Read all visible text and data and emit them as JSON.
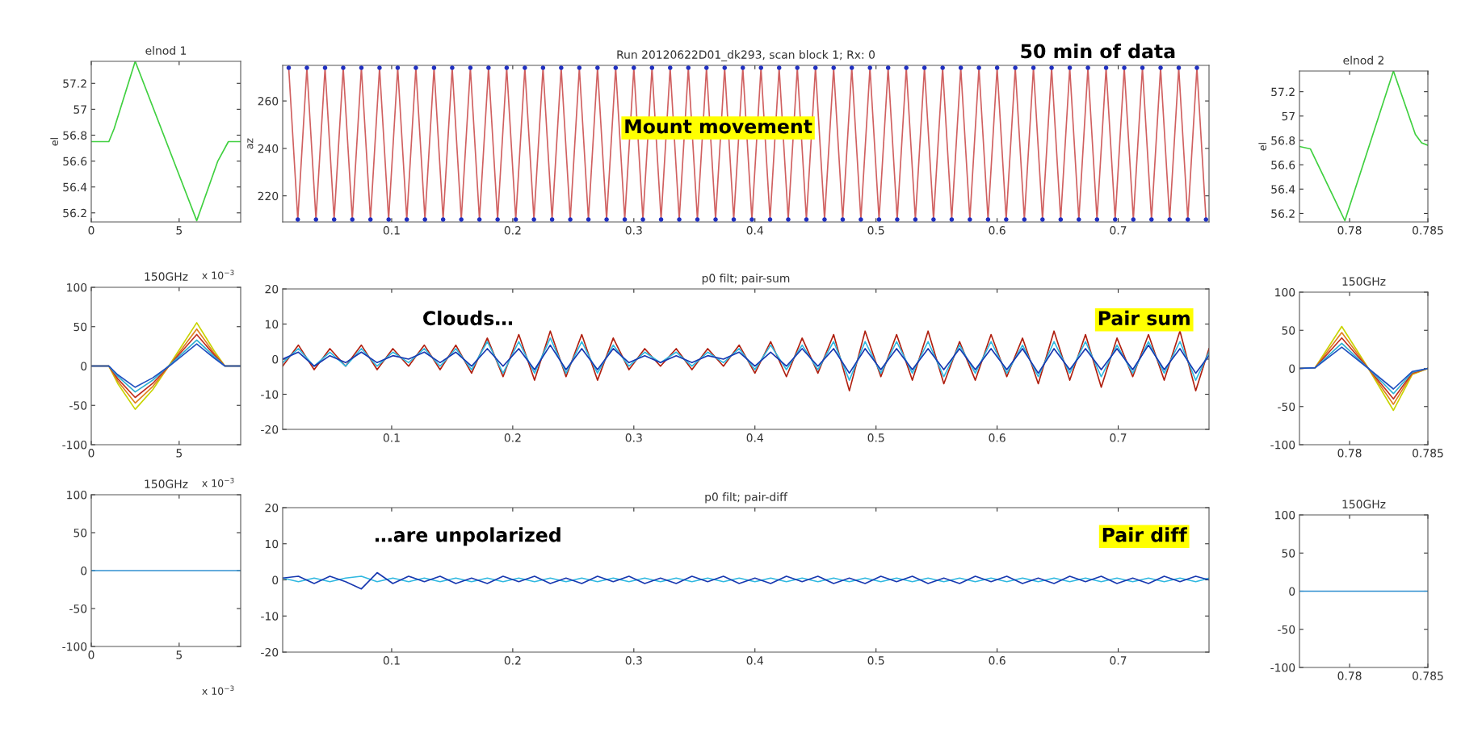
{
  "chart_data": [
    {
      "type": "line",
      "title": "elnod 1",
      "ylabel": "el",
      "x": [
        0,
        1,
        1.3,
        2.5,
        6.0,
        7.2,
        7.8,
        8.5
      ],
      "xlim": [
        0,
        8.5
      ],
      "xticks": [
        0,
        5
      ],
      "ylim": [
        56.13,
        57.37
      ],
      "yticks": [
        56.2,
        56.4,
        56.6,
        56.8,
        57,
        57.2
      ],
      "grid": false,
      "series": [
        {
          "color": "#40d040",
          "values": [
            56.75,
            56.75,
            56.85,
            57.37,
            56.14,
            56.6,
            56.75,
            56.75
          ]
        }
      ]
    },
    {
      "type": "line",
      "title": "Run 20120622D01_dk293, scan block 1; Rx: 0",
      "ylabel": "az",
      "xlim": [
        0.01,
        0.775
      ],
      "xticks": [
        0.1,
        0.2,
        0.3,
        0.4,
        0.5,
        0.6,
        0.7
      ],
      "ylim": [
        209,
        275
      ],
      "yticks": [
        220,
        240,
        260
      ],
      "grid": false,
      "x": [
        0.015,
        0.0225,
        0.03,
        0.0375,
        0.045,
        0.0525,
        0.06,
        0.0675,
        0.075,
        0.0825,
        0.09,
        0.0975,
        0.105,
        0.1125,
        0.12,
        0.1275,
        0.135,
        0.1425,
        0.15,
        0.1575,
        0.165,
        0.1725,
        0.18,
        0.1875,
        0.195,
        0.2025,
        0.21,
        0.2175,
        0.225,
        0.2325,
        0.24,
        0.2475,
        0.255,
        0.2625,
        0.27,
        0.2775,
        0.285,
        0.2925,
        0.3,
        0.3075,
        0.315,
        0.3225,
        0.33,
        0.3375,
        0.345,
        0.3525,
        0.36,
        0.3675,
        0.375,
        0.3825,
        0.39,
        0.3975,
        0.405,
        0.4125,
        0.42,
        0.4275,
        0.435,
        0.4425,
        0.45,
        0.4575,
        0.465,
        0.4725,
        0.48,
        0.4875,
        0.495,
        0.5025,
        0.51,
        0.5175,
        0.525,
        0.5325,
        0.54,
        0.5475,
        0.555,
        0.5625,
        0.57,
        0.5775,
        0.585,
        0.5925,
        0.6,
        0.6075,
        0.615,
        0.6225,
        0.63,
        0.6375,
        0.645,
        0.6525,
        0.66,
        0.6675,
        0.675,
        0.6825,
        0.69,
        0.6975,
        0.705,
        0.7125,
        0.72,
        0.7275,
        0.735,
        0.7425,
        0.75,
        0.7575,
        0.765,
        0.7725
      ],
      "series": [
        {
          "type": "line",
          "color": "#d06060",
          "values": [
            274,
            210,
            274,
            210,
            274,
            210,
            274,
            210,
            274,
            210,
            274,
            210,
            274,
            210,
            274,
            210,
            274,
            210,
            274,
            210,
            274,
            210,
            274,
            210,
            274,
            210,
            274,
            210,
            274,
            210,
            274,
            210,
            274,
            210,
            274,
            210,
            274,
            210,
            274,
            210,
            274,
            210,
            274,
            210,
            274,
            210,
            274,
            210,
            274,
            210,
            274,
            210,
            274,
            210,
            274,
            210,
            274,
            210,
            274,
            210,
            274,
            210,
            274,
            210,
            274,
            210,
            274,
            210,
            274,
            210,
            274,
            210,
            274,
            210,
            274,
            210,
            274,
            210,
            274,
            210,
            274,
            210,
            274,
            210,
            274,
            210,
            274,
            210,
            274,
            210,
            274,
            210,
            274,
            210,
            274,
            210,
            274,
            210,
            274,
            210,
            274,
            210
          ]
        },
        {
          "type": "scatter",
          "marker": "circle",
          "color": "#2030c0",
          "values": [
            274,
            210,
            274,
            210,
            274,
            210,
            274,
            210,
            274,
            210,
            274,
            210,
            274,
            210,
            274,
            210,
            274,
            210,
            274,
            210,
            274,
            210,
            274,
            210,
            274,
            210,
            274,
            210,
            274,
            210,
            274,
            210,
            274,
            210,
            274,
            210,
            274,
            210,
            274,
            210,
            274,
            210,
            274,
            210,
            274,
            210,
            274,
            210,
            274,
            210,
            274,
            210,
            274,
            210,
            274,
            210,
            274,
            210,
            274,
            210,
            274,
            210,
            274,
            210,
            274,
            210,
            274,
            210,
            274,
            210,
            274,
            210,
            274,
            210,
            274,
            210,
            274,
            210,
            274,
            210,
            274,
            210,
            274,
            210,
            274,
            210,
            274,
            210,
            274,
            210,
            274,
            210,
            274,
            210,
            274,
            210,
            274,
            210,
            274,
            210,
            274,
            210
          ]
        }
      ],
      "annotations": [
        "50 min of data",
        "Mount movement"
      ]
    },
    {
      "type": "line",
      "title": "elnod 2",
      "ylabel": "el",
      "x": [
        0.7768,
        0.7775,
        0.7797,
        0.7828,
        0.7842,
        0.7846,
        0.785
      ],
      "xlim": [
        0.7768,
        0.785
      ],
      "xticks": [
        0.78,
        0.785
      ],
      "ylim": [
        56.13,
        57.37
      ],
      "yticks": [
        56.2,
        56.4,
        56.6,
        56.8,
        57,
        57.2
      ],
      "grid": false,
      "series": [
        {
          "color": "#40d040",
          "values": [
            56.75,
            56.73,
            56.14,
            57.37,
            56.85,
            56.78,
            56.76
          ]
        }
      ]
    },
    {
      "type": "line",
      "title": "150GHz",
      "x": [
        0,
        1,
        1.5,
        2.5,
        3.5,
        4.5,
        6,
        7,
        7.6,
        8.5
      ],
      "xlim": [
        0,
        8.5
      ],
      "xticks": [
        0,
        5
      ],
      "ylim": [
        -100,
        100
      ],
      "yticks": [
        -100,
        -50,
        0,
        50,
        100
      ],
      "grid": false,
      "series": [
        {
          "color": "#c8d400",
          "values": [
            0,
            0,
            -22,
            -55,
            -30,
            3,
            55,
            19,
            0,
            0
          ]
        },
        {
          "color": "#e08020",
          "values": [
            0,
            0,
            -19,
            -47,
            -26,
            2,
            47,
            16,
            0,
            0
          ]
        },
        {
          "color": "#c03020",
          "values": [
            0,
            0,
            -16,
            -40,
            -22,
            2,
            40,
            14,
            0,
            0
          ]
        },
        {
          "color": "#30b0d0",
          "values": [
            0,
            0,
            -13,
            -33,
            -18,
            2,
            33,
            12,
            0,
            0
          ]
        },
        {
          "color": "#2050c0",
          "values": [
            0,
            0,
            -11,
            -27,
            -15,
            1,
            28,
            10,
            0,
            0
          ]
        }
      ],
      "annotations": [
        "x 10$^{−3}$"
      ]
    },
    {
      "type": "line",
      "title": "p0 filt; pair-sum",
      "xlim": [
        0.01,
        0.775
      ],
      "xticks": [
        0.1,
        0.2,
        0.3,
        0.4,
        0.5,
        0.6,
        0.7
      ],
      "ylim": [
        -20,
        20
      ],
      "yticks": [
        -20,
        -10,
        0,
        10,
        20
      ],
      "grid": false,
      "x": [
        0.01,
        0.023,
        0.036,
        0.049,
        0.062,
        0.075,
        0.088,
        0.101,
        0.114,
        0.127,
        0.14,
        0.153,
        0.166,
        0.179,
        0.192,
        0.205,
        0.218,
        0.231,
        0.244,
        0.257,
        0.27,
        0.283,
        0.296,
        0.309,
        0.322,
        0.335,
        0.348,
        0.361,
        0.374,
        0.387,
        0.4,
        0.413,
        0.426,
        0.439,
        0.452,
        0.465,
        0.478,
        0.491,
        0.504,
        0.517,
        0.53,
        0.543,
        0.556,
        0.569,
        0.582,
        0.595,
        0.608,
        0.621,
        0.634,
        0.647,
        0.66,
        0.673,
        0.686,
        0.699,
        0.712,
        0.725,
        0.738,
        0.751,
        0.764,
        0.775
      ],
      "series": [
        {
          "color": "#b02010",
          "values": [
            -2,
            4,
            -3,
            3,
            -2,
            4,
            -3,
            3,
            -2,
            4,
            -3,
            4,
            -4,
            6,
            -5,
            7,
            -6,
            8,
            -5,
            7,
            -6,
            6,
            -3,
            3,
            -2,
            3,
            -3,
            3,
            -2,
            4,
            -4,
            5,
            -5,
            6,
            -4,
            7,
            -9,
            8,
            -5,
            7,
            -6,
            8,
            -7,
            5,
            -6,
            7,
            -5,
            6,
            -7,
            8,
            -6,
            7,
            -8,
            6,
            -5,
            7,
            -6,
            8,
            -9,
            3
          ]
        },
        {
          "color": "#30b8e0",
          "values": [
            -1,
            3,
            -2,
            2,
            -2,
            3,
            -2,
            2,
            -1,
            3,
            -2,
            3,
            -3,
            5,
            -4,
            5,
            -4,
            6,
            -4,
            5,
            -4,
            4,
            -2,
            2,
            -1,
            2,
            -2,
            2,
            -1,
            3,
            -3,
            4,
            -3,
            4,
            -3,
            5,
            -6,
            5,
            -4,
            5,
            -4,
            5,
            -5,
            4,
            -4,
            5,
            -4,
            4,
            -5,
            5,
            -4,
            5,
            -5,
            4,
            -4,
            5,
            -4,
            5,
            -6,
            2
          ]
        },
        {
          "color": "#1838b0",
          "values": [
            0,
            2,
            -2,
            1,
            -1,
            2,
            -1,
            1,
            0,
            2,
            -1,
            2,
            -2,
            3,
            -2,
            3,
            -3,
            4,
            -3,
            3,
            -3,
            3,
            -1,
            1,
            -1,
            1,
            -1,
            1,
            0,
            2,
            -2,
            2,
            -2,
            3,
            -2,
            3,
            -4,
            3,
            -3,
            3,
            -3,
            3,
            -3,
            3,
            -3,
            3,
            -3,
            3,
            -4,
            3,
            -3,
            3,
            -3,
            3,
            -3,
            4,
            -3,
            3,
            -4,
            1
          ]
        }
      ],
      "annotations": [
        "Clouds…",
        "Pair sum"
      ]
    },
    {
      "type": "line",
      "title": "150GHz",
      "x": [
        0.7768,
        0.7778,
        0.7795,
        0.7812,
        0.7828,
        0.784,
        0.785
      ],
      "xlim": [
        0.7768,
        0.785
      ],
      "xticks": [
        0.78,
        0.785
      ],
      "ylim": [
        -100,
        100
      ],
      "yticks": [
        -100,
        -50,
        0,
        50,
        100
      ],
      "grid": false,
      "series": [
        {
          "color": "#c8d400",
          "values": [
            0,
            1,
            55,
            0,
            -55,
            -8,
            0
          ]
        },
        {
          "color": "#e08020",
          "values": [
            0,
            1,
            47,
            0,
            -47,
            -7,
            0
          ]
        },
        {
          "color": "#c03020",
          "values": [
            0,
            1,
            40,
            0,
            -40,
            -6,
            0
          ]
        },
        {
          "color": "#30b0d0",
          "values": [
            0,
            1,
            33,
            0,
            -33,
            -5,
            0
          ]
        },
        {
          "color": "#2050c0",
          "values": [
            0,
            1,
            28,
            0,
            -27,
            -4,
            0
          ]
        }
      ]
    },
    {
      "type": "line",
      "title": "150GHz",
      "x": [
        0,
        2,
        4,
        6,
        8.5
      ],
      "xlim": [
        0,
        8.5
      ],
      "xticks": [
        0,
        5
      ],
      "ylim": [
        -100,
        100
      ],
      "yticks": [
        -100,
        -50,
        0,
        50,
        100
      ],
      "grid": false,
      "series": [
        {
          "color": "#3090d0",
          "values": [
            0,
            0,
            0,
            0,
            0
          ]
        }
      ],
      "annotations": [
        "x 10$^{−3}$",
        "x 10$^{−3}$"
      ]
    },
    {
      "type": "line",
      "title": "p0 filt; pair-diff",
      "xlim": [
        0.01,
        0.775
      ],
      "xticks": [
        0.1,
        0.2,
        0.3,
        0.4,
        0.5,
        0.6,
        0.7
      ],
      "ylim": [
        -20,
        20
      ],
      "yticks": [
        -20,
        -10,
        0,
        10,
        20
      ],
      "grid": false,
      "x": [
        0.01,
        0.023,
        0.036,
        0.049,
        0.062,
        0.075,
        0.088,
        0.101,
        0.114,
        0.127,
        0.14,
        0.153,
        0.166,
        0.179,
        0.192,
        0.205,
        0.218,
        0.231,
        0.244,
        0.257,
        0.27,
        0.283,
        0.296,
        0.309,
        0.322,
        0.335,
        0.348,
        0.361,
        0.374,
        0.387,
        0.4,
        0.413,
        0.426,
        0.439,
        0.452,
        0.465,
        0.478,
        0.491,
        0.504,
        0.517,
        0.53,
        0.543,
        0.556,
        0.569,
        0.582,
        0.595,
        0.608,
        0.621,
        0.634,
        0.647,
        0.66,
        0.673,
        0.686,
        0.699,
        0.712,
        0.725,
        0.738,
        0.751,
        0.764,
        0.775
      ],
      "series": [
        {
          "color": "#30b8e0",
          "values": [
            0.5,
            -0.5,
            0.5,
            -0.5,
            0.5,
            1,
            -0.5,
            0.5,
            -0.5,
            0.5,
            -0.5,
            0.5,
            -0.5,
            0.5,
            -0.5,
            0.5,
            -0.5,
            0.5,
            -0.5,
            0.5,
            -0.5,
            0.5,
            -0.5,
            0.5,
            -0.5,
            0.5,
            -0.5,
            0.5,
            -0.5,
            0.5,
            -0.5,
            0.5,
            -0.5,
            0.5,
            -0.5,
            0.5,
            -0.5,
            0.5,
            -0.5,
            0.5,
            -0.5,
            0.5,
            -0.5,
            0.5,
            -0.5,
            0.5,
            -0.5,
            0.5,
            -0.5,
            0.5,
            -0.5,
            0.5,
            -0.5,
            0.5,
            -0.5,
            0.5,
            -0.5,
            0.5,
            -0.5,
            0.5
          ]
        },
        {
          "color": "#1838b0",
          "values": [
            0.5,
            1,
            -1,
            1,
            -0.5,
            -2.5,
            2,
            -1,
            1,
            -0.5,
            1,
            -1,
            0.5,
            -1,
            1,
            -0.5,
            1,
            -1,
            0.5,
            -1,
            1,
            -0.5,
            1,
            -1,
            0.5,
            -1,
            1,
            -0.5,
            1,
            -1,
            0.5,
            -1,
            1,
            -0.5,
            1,
            -1,
            0.5,
            -1,
            1,
            -0.5,
            1,
            -1,
            0.5,
            -1,
            1,
            -0.5,
            1,
            -1,
            0.5,
            -1,
            1,
            -0.5,
            1,
            -1,
            0.5,
            -1,
            1,
            -0.5,
            1,
            0
          ]
        }
      ],
      "annotations": [
        "…are unpolarized",
        "Pair diff"
      ]
    },
    {
      "type": "line",
      "title": "150GHz",
      "x": [
        0.7768,
        0.779,
        0.781,
        0.783,
        0.785
      ],
      "xlim": [
        0.7768,
        0.785
      ],
      "xticks": [
        0.78,
        0.785
      ],
      "ylim": [
        -100,
        100
      ],
      "yticks": [
        -100,
        -50,
        0,
        50,
        100
      ],
      "grid": false,
      "series": [
        {
          "color": "#3090d0",
          "values": [
            0,
            0,
            0,
            0,
            0
          ]
        }
      ]
    }
  ]
}
